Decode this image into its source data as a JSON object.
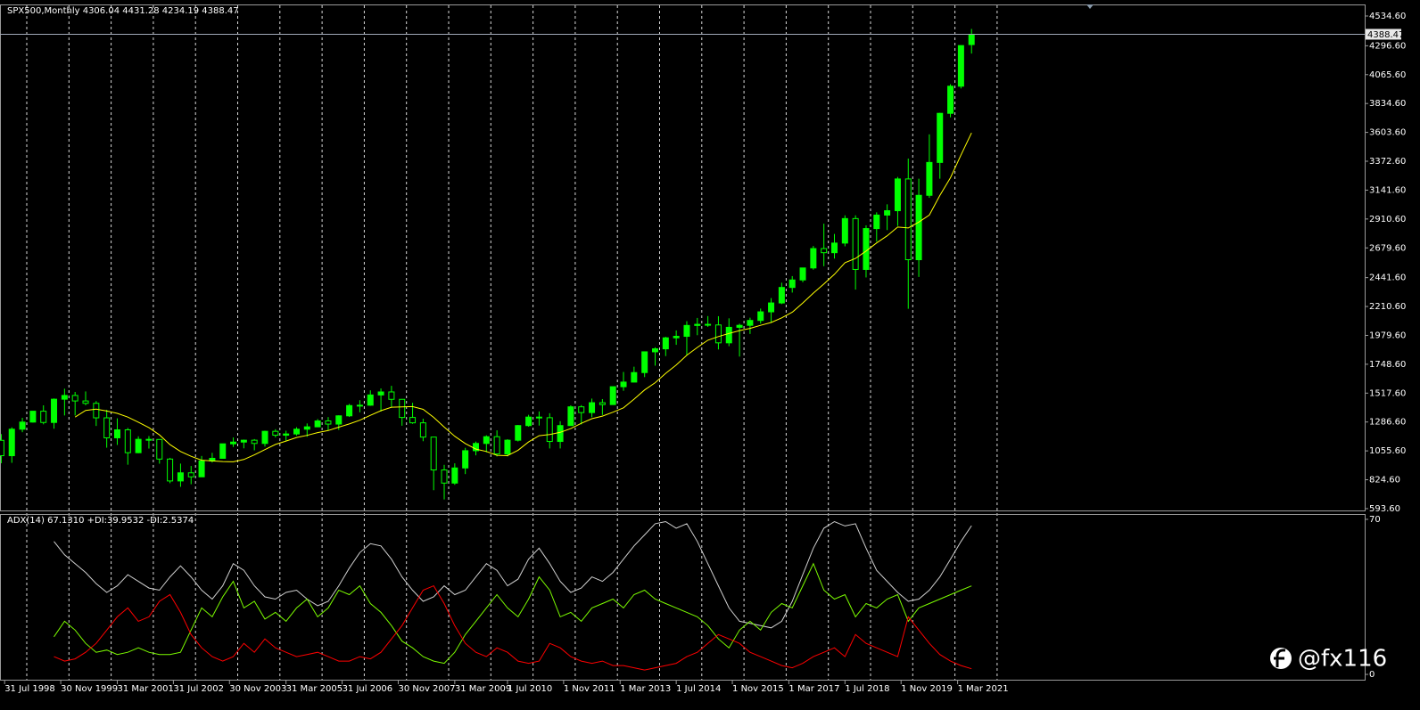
{
  "chart_data": [
    {
      "type": "candlestick",
      "title": "SPX500,Monthly  4306.04 4431.28 4234.19 4388.47",
      "color": "#00ff00",
      "x": [
        1998.5,
        1998.75,
        1999,
        1999.25,
        1999.5,
        1999.75,
        2000,
        2000.25,
        2000.5,
        2000.75,
        2001,
        2001.25,
        2001.5,
        2001.75,
        2002,
        2002.25,
        2002.5,
        2002.75,
        2003,
        2003.25,
        2003.5,
        2003.75,
        2004,
        2004.25,
        2004.5,
        2004.75,
        2005,
        2005.25,
        2005.5,
        2005.75,
        2006,
        2006.25,
        2006.5,
        2006.75,
        2007,
        2007.25,
        2007.5,
        2007.75,
        2008,
        2008.25,
        2008.5,
        2008.75,
        2009,
        2009.25,
        2009.5,
        2009.75,
        2010,
        2010.25,
        2010.5,
        2010.75,
        2011,
        2011.25,
        2011.5,
        2011.75,
        2012,
        2012.25,
        2012.5,
        2012.75,
        2013,
        2013.25,
        2013.5,
        2013.75,
        2014,
        2014.25,
        2014.5,
        2014.75,
        2015,
        2015.25,
        2015.5,
        2015.75,
        2016,
        2016.25,
        2016.5,
        2016.75,
        2017,
        2017.25,
        2017.5,
        2017.75,
        2018,
        2018.25,
        2018.5,
        2018.75,
        2019,
        2019.25,
        2019.5,
        2019.75,
        2020,
        2020.25,
        2020.5,
        2020.75,
        2021,
        2021.25,
        2021.5
      ],
      "open": [
        1140,
        1017,
        1229,
        1286,
        1373,
        1283,
        1469,
        1499,
        1455,
        1436,
        1320,
        1160,
        1224,
        1041,
        1148,
        1147,
        990,
        815,
        880,
        848,
        975,
        996,
        1112,
        1126,
        1141,
        1115,
        1212,
        1181,
        1191,
        1229,
        1248,
        1295,
        1270,
        1336,
        1418,
        1421,
        1503,
        1527,
        1468,
        1323,
        1280,
        1166,
        903,
        798,
        919,
        1057,
        1115,
        1169,
        1031,
        1141,
        1258,
        1326,
        1321,
        1131,
        1258,
        1408,
        1362,
        1441,
        1426,
        1569,
        1606,
        1682,
        1848,
        1872,
        1960,
        1972,
        2059,
        2068,
        2063,
        1920,
        2044,
        2060,
        2099,
        2168,
        2239,
        2363,
        2423,
        2519,
        2674,
        2641,
        2718,
        2914,
        2507,
        2834,
        2942,
        2977,
        3231,
        2585,
        3100,
        3363,
        3756,
        3973,
        4306.04
      ],
      "high": [
        1190,
        1244,
        1320,
        1375,
        1420,
        1475,
        1553,
        1527,
        1531,
        1454,
        1384,
        1316,
        1239,
        1172,
        1174,
        1147,
        1000,
        954,
        935,
        1015,
        1040,
        1112,
        1163,
        1146,
        1150,
        1217,
        1229,
        1217,
        1245,
        1275,
        1310,
        1326,
        1340,
        1431,
        1461,
        1540,
        1555,
        1576,
        1471,
        1440,
        1313,
        1167,
        944,
        956,
        1080,
        1130,
        1180,
        1220,
        1149,
        1263,
        1344,
        1371,
        1357,
        1293,
        1420,
        1422,
        1474,
        1470,
        1570,
        1687,
        1729,
        1849,
        1884,
        1968,
        2019,
        2093,
        2119,
        2134,
        2133,
        2116,
        2073,
        2121,
        2194,
        2278,
        2401,
        2454,
        2519,
        2695,
        2873,
        2791,
        2940,
        2940,
        2860,
        2964,
        3028,
        3247,
        3394,
        3233,
        3588,
        3760,
        3989,
        4300,
        4431.28
      ],
      "low": [
        957,
        960,
        1205,
        1282,
        1268,
        1233,
        1339,
        1339,
        1420,
        1255,
        1081,
        1103,
        945,
        1037,
        1074,
        953,
        797,
        768,
        789,
        847,
        962,
        995,
        1087,
        1076,
        1060,
        1090,
        1163,
        1137,
        1178,
        1168,
        1245,
        1219,
        1224,
        1327,
        1364,
        1416,
        1370,
        1406,
        1257,
        1272,
        1133,
        741,
        667,
        784,
        870,
        1020,
        1044,
        1011,
        1011,
        1131,
        1249,
        1258,
        1075,
        1075,
        1258,
        1267,
        1325,
        1343,
        1426,
        1536,
        1604,
        1646,
        1737,
        1814,
        1904,
        1820,
        1981,
        2048,
        1867,
        1893,
        1810,
        1991,
        2074,
        2084,
        2230,
        2322,
        2405,
        2505,
        2533,
        2594,
        2692,
        2346,
        2443,
        2729,
        2822,
        2855,
        2192,
        2447,
        3080,
        3233,
        3724,
        3955,
        4234.19
      ],
      "close": [
        1017,
        1229,
        1286,
        1373,
        1283,
        1469,
        1499,
        1455,
        1436,
        1320,
        1160,
        1224,
        1041,
        1148,
        1147,
        990,
        815,
        880,
        848,
        975,
        996,
        1112,
        1126,
        1141,
        1115,
        1212,
        1181,
        1191,
        1229,
        1248,
        1295,
        1270,
        1336,
        1418,
        1421,
        1503,
        1527,
        1468,
        1323,
        1280,
        1166,
        903,
        798,
        919,
        1057,
        1115,
        1169,
        1031,
        1141,
        1258,
        1326,
        1321,
        1131,
        1258,
        1408,
        1362,
        1441,
        1426,
        1569,
        1606,
        1682,
        1848,
        1872,
        1960,
        1972,
        2059,
        2068,
        2063,
        1920,
        2044,
        2060,
        2099,
        2168,
        2239,
        2363,
        2423,
        2519,
        2674,
        2641,
        2718,
        2914,
        2507,
        2834,
        2942,
        2977,
        3231,
        2585,
        3100,
        3363,
        3756,
        3973,
        4298,
        4388.47
      ],
      "ma": {
        "color": "#ffff00",
        "values": [
          null,
          null,
          null,
          null,
          null,
          null,
          null,
          1326,
          1379,
          1390,
          1374,
          1356,
          1326,
          1285,
          1241,
          1183,
          1106,
          1051,
          1012,
          981,
          975,
          970,
          968,
          987,
          1024,
          1066,
          1107,
          1134,
          1163,
          1180,
          1202,
          1218,
          1245,
          1271,
          1301,
          1340,
          1377,
          1405,
          1408,
          1410,
          1388,
          1324,
          1246,
          1173,
          1114,
          1070,
          1051,
          1020,
          1017,
          1061,
          1127,
          1177,
          1187,
          1204,
          1234,
          1276,
          1313,
          1334,
          1365,
          1400,
          1469,
          1543,
          1601,
          1676,
          1742,
          1821,
          1883,
          1941,
          1970,
          1995,
          2018,
          2036,
          2060,
          2083,
          2120,
          2165,
          2239,
          2318,
          2391,
          2468,
          2561,
          2595,
          2654,
          2719,
          2776,
          2846,
          2839,
          2886,
          2942,
          3099,
          3241,
          3423,
          3599
        ]
      },
      "price_line": {
        "value": 4388.47,
        "label": "4388.47"
      },
      "xlim": [
        1998.47,
        2030.82
      ],
      "ylim": [
        579,
        4627
      ],
      "xticks": [
        {
          "value": 1998.58,
          "label": "31 Jul 1998"
        },
        {
          "value": 1999.91,
          "label": "30 Nov 1999"
        },
        {
          "value": 2001.25,
          "label": "31 Mar 2001"
        },
        {
          "value": 2002.58,
          "label": "31 Jul 2002"
        },
        {
          "value": 2003.91,
          "label": "30 Nov 2003"
        },
        {
          "value": 2005.25,
          "label": "31 Mar 2005"
        },
        {
          "value": 2006.58,
          "label": "31 Jul 2006"
        },
        {
          "value": 2007.91,
          "label": "30 Nov 2007"
        },
        {
          "value": 2009.25,
          "label": "31 Mar 2009"
        },
        {
          "value": 2010.5,
          "label": "1 Jul 2010"
        },
        {
          "value": 2011.83,
          "label": "1 Nov 2011"
        },
        {
          "value": 2013.17,
          "label": "1 Mar 2013"
        },
        {
          "value": 2014.5,
          "label": "1 Jul 2014"
        },
        {
          "value": 2015.83,
          "label": "1 Nov 2015"
        },
        {
          "value": 2017.17,
          "label": "1 Mar 2017"
        },
        {
          "value": 2018.5,
          "label": "1 Jul 2018"
        },
        {
          "value": 2019.83,
          "label": "1 Nov 2019"
        },
        {
          "value": 2021.17,
          "label": "1 Mar 2021"
        }
      ],
      "yticks": [
        {
          "value": 4534.6,
          "label": "4534.60"
        },
        {
          "value": 4296.6,
          "label": "4296.60"
        },
        {
          "value": 4065.6,
          "label": "4065.60"
        },
        {
          "value": 3834.6,
          "label": "3834.60"
        },
        {
          "value": 3603.6,
          "label": "3603.60"
        },
        {
          "value": 3372.6,
          "label": "3372.60"
        },
        {
          "value": 3141.6,
          "label": "3141.60"
        },
        {
          "value": 2910.6,
          "label": "2910.60"
        },
        {
          "value": 2679.6,
          "label": "2679.60"
        },
        {
          "value": 2441.6,
          "label": "2441.60"
        },
        {
          "value": 2210.6,
          "label": "2210.60"
        },
        {
          "value": 1979.6,
          "label": "1979.60"
        },
        {
          "value": 1748.6,
          "label": "1748.60"
        },
        {
          "value": 1517.6,
          "label": "1517.60"
        },
        {
          "value": 1286.6,
          "label": "1286.60"
        },
        {
          "value": 1055.6,
          "label": "1055.60"
        },
        {
          "value": 824.6,
          "label": "824.60"
        },
        {
          "value": 593.6,
          "label": "593.60"
        }
      ]
    },
    {
      "type": "line",
      "title": "ADX(14) 67.1310 +DI:39.9532 -DI:2.5374",
      "x": [
        1998.5,
        1998.75,
        1999,
        1999.25,
        1999.5,
        1999.75,
        2000,
        2000.25,
        2000.5,
        2000.75,
        2001,
        2001.25,
        2001.5,
        2001.75,
        2002,
        2002.25,
        2002.5,
        2002.75,
        2003,
        2003.25,
        2003.5,
        2003.75,
        2004,
        2004.25,
        2004.5,
        2004.75,
        2005,
        2005.25,
        2005.5,
        2005.75,
        2006,
        2006.25,
        2006.5,
        2006.75,
        2007,
        2007.25,
        2007.5,
        2007.75,
        2008,
        2008.25,
        2008.5,
        2008.75,
        2009,
        2009.25,
        2009.5,
        2009.75,
        2010,
        2010.25,
        2010.5,
        2010.75,
        2011,
        2011.25,
        2011.5,
        2011.75,
        2012,
        2012.25,
        2012.5,
        2012.75,
        2013,
        2013.25,
        2013.5,
        2013.75,
        2014,
        2014.25,
        2014.5,
        2014.75,
        2015,
        2015.25,
        2015.5,
        2015.75,
        2016,
        2016.25,
        2016.5,
        2016.75,
        2017,
        2017.25,
        2017.5,
        2017.75,
        2018,
        2018.25,
        2018.5,
        2018.75,
        2019,
        2019.25,
        2019.5,
        2019.75,
        2020,
        2020.25,
        2020.5,
        2020.75,
        2021,
        2021.25,
        2021.5
      ],
      "series": [
        {
          "color": "#d0d0d0",
          "values": [
            null,
            null,
            null,
            null,
            null,
            60,
            54,
            50,
            46,
            41,
            37,
            40,
            45,
            42,
            39,
            38,
            44,
            49,
            44,
            38,
            34,
            40,
            50,
            47,
            40,
            35,
            34,
            37,
            38,
            34,
            31,
            33,
            40,
            48,
            55,
            59,
            58,
            52,
            44,
            38,
            33,
            35,
            40,
            36,
            38,
            44,
            50,
            47,
            40,
            43,
            52,
            57,
            50,
            42,
            37,
            39,
            44,
            42,
            46,
            52,
            58,
            63,
            68,
            69,
            66,
            68,
            60,
            50,
            40,
            30,
            24,
            23,
            22,
            21,
            24,
            33,
            45,
            57,
            66,
            69,
            67,
            68,
            57,
            47,
            42,
            37,
            33,
            34,
            38,
            44,
            52,
            60,
            67.131
          ]
        },
        {
          "color": "#7cfc00",
          "values": [
            null,
            null,
            null,
            null,
            null,
            17,
            24,
            20,
            14,
            10,
            11,
            9,
            10,
            12,
            10,
            9,
            9,
            10,
            20,
            30,
            26,
            35,
            42,
            30,
            33,
            25,
            28,
            24,
            30,
            34,
            26,
            30,
            38,
            36,
            40,
            32,
            28,
            22,
            15,
            12,
            8,
            6,
            5,
            10,
            18,
            24,
            30,
            36,
            30,
            26,
            34,
            44,
            38,
            26,
            28,
            24,
            30,
            32,
            34,
            30,
            36,
            38,
            34,
            32,
            30,
            28,
            26,
            22,
            16,
            12,
            20,
            24,
            20,
            28,
            32,
            30,
            40,
            50,
            38,
            34,
            36,
            26,
            32,
            30,
            34,
            36,
            24,
            30,
            32,
            34,
            36,
            38,
            39.9532
          ]
        },
        {
          "color": "#ff0000",
          "values": [
            null,
            null,
            null,
            null,
            null,
            8,
            6,
            7,
            10,
            14,
            20,
            26,
            30,
            24,
            26,
            33,
            36,
            28,
            18,
            12,
            8,
            6,
            8,
            14,
            10,
            16,
            12,
            10,
            8,
            9,
            10,
            8,
            6,
            6,
            8,
            7,
            10,
            16,
            22,
            30,
            38,
            40,
            32,
            22,
            14,
            10,
            8,
            12,
            10,
            6,
            5,
            6,
            14,
            12,
            8,
            6,
            5,
            6,
            4,
            4,
            3,
            2,
            3,
            4,
            5,
            8,
            10,
            14,
            18,
            16,
            14,
            10,
            8,
            6,
            4,
            3,
            5,
            8,
            10,
            12,
            8,
            18,
            14,
            12,
            10,
            8,
            26,
            20,
            14,
            9,
            6,
            4,
            2.5374
          ]
        }
      ],
      "xlim": [
        1998.47,
        2030.82
      ],
      "ylim": [
        -2.4,
        72.4
      ],
      "yticks": [
        70,
        0
      ]
    }
  ],
  "watermark": "@fx116"
}
